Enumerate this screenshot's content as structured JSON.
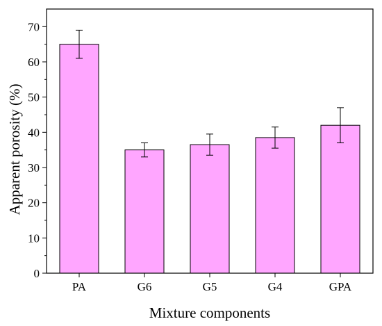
{
  "chart_data": {
    "type": "bar",
    "title": "",
    "xlabel": "Mixture components",
    "ylabel": "Apparent porosity (%)",
    "categories": [
      "PA",
      "G6",
      "G5",
      "G4",
      "GPA"
    ],
    "values": [
      65,
      35,
      36.5,
      38.5,
      42
    ],
    "error_low": [
      61,
      33,
      33.5,
      35.5,
      37
    ],
    "error_high": [
      69,
      37,
      39.5,
      41.5,
      47
    ],
    "ylim": [
      0,
      75
    ],
    "yticks": [
      0,
      10,
      20,
      30,
      40,
      50,
      60,
      70
    ],
    "grid": false,
    "bar_color": "#FFA6FF",
    "bar_edge_color": "#000000"
  }
}
